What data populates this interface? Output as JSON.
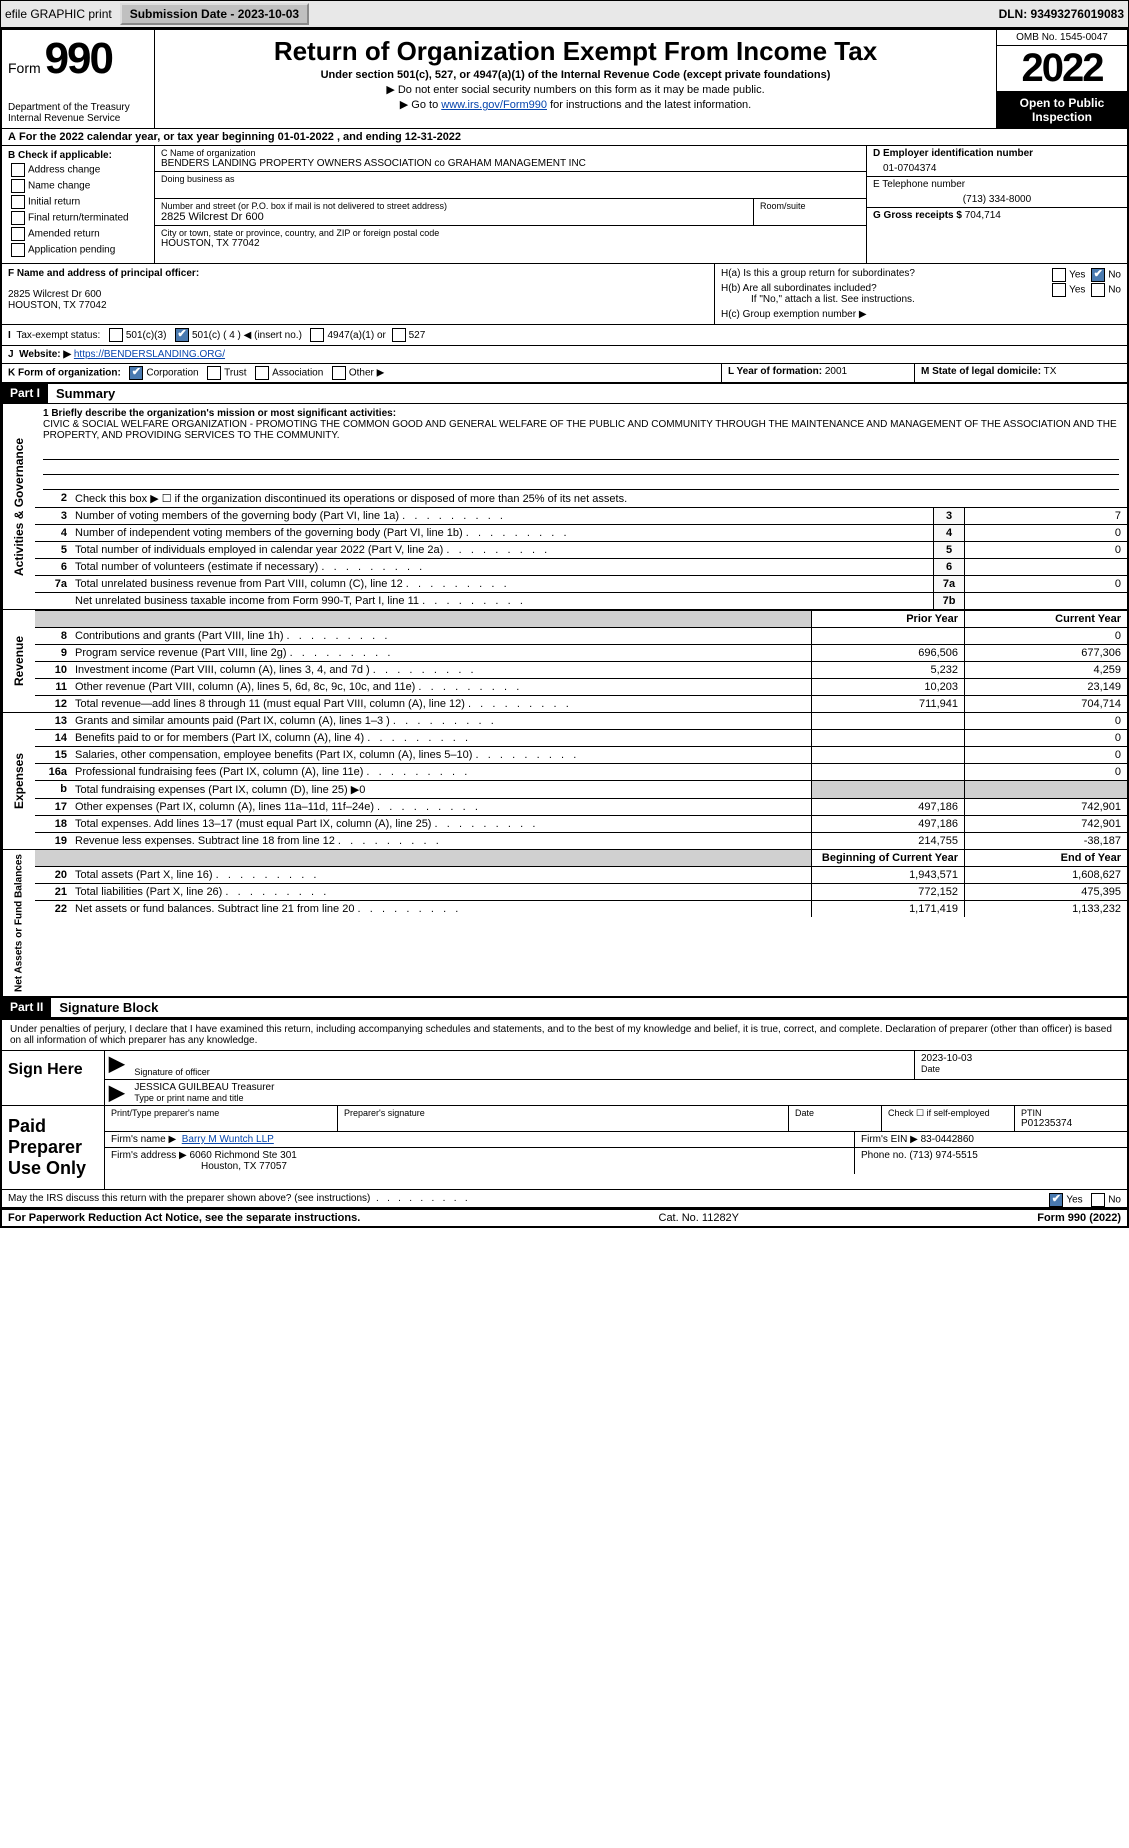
{
  "topbar": {
    "efile": "efile GRAPHIC print",
    "submission_label": "Submission Date - 2023-10-03",
    "dln": "DLN: 93493276019083"
  },
  "header": {
    "form_label": "Form",
    "form_number": "990",
    "dept": "Department of the Treasury",
    "irs": "Internal Revenue Service",
    "title": "Return of Organization Exempt From Income Tax",
    "sub1": "Under section 501(c), 527, or 4947(a)(1) of the Internal Revenue Code (except private foundations)",
    "sub2": "▶ Do not enter social security numbers on this form as it may be made public.",
    "sub3_pre": "▶ Go to ",
    "sub3_link": "www.irs.gov/Form990",
    "sub3_post": " for instructions and the latest information.",
    "omb": "OMB No. 1545-0047",
    "year": "2022",
    "open_public": "Open to Public Inspection"
  },
  "rowA": "For the 2022 calendar year, or tax year beginning 01-01-2022    , and ending 12-31-2022",
  "boxB": {
    "label": "B Check if applicable:",
    "opts": [
      "Address change",
      "Name change",
      "Initial return",
      "Final return/terminated",
      "Amended return",
      "Application pending"
    ]
  },
  "boxC": {
    "name_label": "C Name of organization",
    "name": "BENDERS LANDING PROPERTY OWNERS ASSOCIATION co GRAHAM MANAGEMENT INC",
    "dba_label": "Doing business as",
    "addr_label": "Number and street (or P.O. box if mail is not delivered to street address)",
    "addr": "2825 Wilcrest Dr 600",
    "room_label": "Room/suite",
    "city_label": "City or town, state or province, country, and ZIP or foreign postal code",
    "city": "HOUSTON, TX  77042"
  },
  "boxD": {
    "ein_label": "D Employer identification number",
    "ein": "01-0704374",
    "phone_label": "E Telephone number",
    "phone": "(713) 334-8000",
    "gross_label": "G Gross receipts $",
    "gross": "704,714"
  },
  "boxF": {
    "label": "F  Name and address of principal officer:",
    "addr1": "2825 Wilcrest Dr 600",
    "addr2": "HOUSTON, TX  77042"
  },
  "boxH": {
    "ha": "H(a)  Is this a group return for subordinates?",
    "hb": "H(b)  Are all subordinates included?",
    "hb_note": "If \"No,\" attach a list. See instructions.",
    "hc": "H(c)  Group exemption number ▶"
  },
  "rowI": {
    "label": "Tax-exempt status:",
    "o1": "501(c)(3)",
    "o2": "501(c) ( 4 ) ◀ (insert no.)",
    "o3": "4947(a)(1) or",
    "o4": "527"
  },
  "rowJ": {
    "label": "Website: ▶",
    "url": "https://BENDERSLANDING.ORG/"
  },
  "rowK": {
    "label": "K Form of organization:",
    "opts": [
      "Corporation",
      "Trust",
      "Association",
      "Other ▶"
    ],
    "year_label": "L Year of formation:",
    "year_val": "2001",
    "state_label": "M State of legal domicile:",
    "state_val": "TX"
  },
  "partI": {
    "title": "Part I",
    "name": "Summary",
    "q1_label": "1  Briefly describe the organization's mission or most significant activities:",
    "q1_text": "CIVIC & SOCIAL WELFARE ORGANIZATION - PROMOTING THE COMMON GOOD AND GENERAL WELFARE OF THE PUBLIC AND COMMUNITY THROUGH THE MAINTENANCE AND MANAGEMENT OF THE ASSOCIATION AND THE PROPERTY, AND PROVIDING SERVICES TO THE COMMUNITY.",
    "q2": "Check this box ▶ ☐  if the organization discontinued its operations or disposed of more than 25% of its net assets.",
    "lines_gov": [
      {
        "n": "3",
        "d": "Number of voting members of the governing body (Part VI, line 1a)",
        "box": "3",
        "v": "7"
      },
      {
        "n": "4",
        "d": "Number of independent voting members of the governing body (Part VI, line 1b)",
        "box": "4",
        "v": "0"
      },
      {
        "n": "5",
        "d": "Total number of individuals employed in calendar year 2022 (Part V, line 2a)",
        "box": "5",
        "v": "0"
      },
      {
        "n": "6",
        "d": "Total number of volunteers (estimate if necessary)",
        "box": "6",
        "v": ""
      },
      {
        "n": "7a",
        "d": "Total unrelated business revenue from Part VIII, column (C), line 12",
        "box": "7a",
        "v": "0"
      },
      {
        "n": "",
        "d": "Net unrelated business taxable income from Form 990-T, Part I, line 11",
        "box": "7b",
        "v": ""
      }
    ],
    "col_prior": "Prior Year",
    "col_current": "Current Year",
    "revenue": [
      {
        "n": "8",
        "d": "Contributions and grants (Part VIII, line 1h)",
        "p": "",
        "c": "0"
      },
      {
        "n": "9",
        "d": "Program service revenue (Part VIII, line 2g)",
        "p": "696,506",
        "c": "677,306"
      },
      {
        "n": "10",
        "d": "Investment income (Part VIII, column (A), lines 3, 4, and 7d )",
        "p": "5,232",
        "c": "4,259"
      },
      {
        "n": "11",
        "d": "Other revenue (Part VIII, column (A), lines 5, 6d, 8c, 9c, 10c, and 11e)",
        "p": "10,203",
        "c": "23,149"
      },
      {
        "n": "12",
        "d": "Total revenue—add lines 8 through 11 (must equal Part VIII, column (A), line 12)",
        "p": "711,941",
        "c": "704,714"
      }
    ],
    "expenses": [
      {
        "n": "13",
        "d": "Grants and similar amounts paid (Part IX, column (A), lines 1–3 )",
        "p": "",
        "c": "0"
      },
      {
        "n": "14",
        "d": "Benefits paid to or for members (Part IX, column (A), line 4)",
        "p": "",
        "c": "0"
      },
      {
        "n": "15",
        "d": "Salaries, other compensation, employee benefits (Part IX, column (A), lines 5–10)",
        "p": "",
        "c": "0"
      },
      {
        "n": "16a",
        "d": "Professional fundraising fees (Part IX, column (A), line 11e)",
        "p": "",
        "c": "0"
      },
      {
        "n": "b",
        "d": "Total fundraising expenses (Part IX, column (D), line 25) ▶0",
        "p": "shaded",
        "c": "shaded"
      },
      {
        "n": "17",
        "d": "Other expenses (Part IX, column (A), lines 11a–11d, 11f–24e)",
        "p": "497,186",
        "c": "742,901"
      },
      {
        "n": "18",
        "d": "Total expenses. Add lines 13–17 (must equal Part IX, column (A), line 25)",
        "p": "497,186",
        "c": "742,901"
      },
      {
        "n": "19",
        "d": "Revenue less expenses. Subtract line 18 from line 12",
        "p": "214,755",
        "c": "-38,187"
      }
    ],
    "col_begin": "Beginning of Current Year",
    "col_end": "End of Year",
    "netassets": [
      {
        "n": "20",
        "d": "Total assets (Part X, line 16)",
        "p": "1,943,571",
        "c": "1,608,627"
      },
      {
        "n": "21",
        "d": "Total liabilities (Part X, line 26)",
        "p": "772,152",
        "c": "475,395"
      },
      {
        "n": "22",
        "d": "Net assets or fund balances. Subtract line 21 from line 20",
        "p": "1,171,419",
        "c": "1,133,232"
      }
    ],
    "tabs": {
      "gov": "Activities & Governance",
      "rev": "Revenue",
      "exp": "Expenses",
      "net": "Net Assets or Fund Balances"
    }
  },
  "partII": {
    "title": "Part II",
    "name": "Signature Block",
    "penalties": "Under penalties of perjury, I declare that I have examined this return, including accompanying schedules and statements, and to the best of my knowledge and belief, it is true, correct, and complete. Declaration of preparer (other than officer) is based on all information of which preparer has any knowledge.",
    "sign_here": "Sign Here",
    "sig_officer": "Signature of officer",
    "sig_date": "Date",
    "sig_date_val": "2023-10-03",
    "officer_name": "JESSICA GUILBEAU  Treasurer",
    "type_name": "Type or print name and title",
    "paid": "Paid Preparer Use Only",
    "prep_name_label": "Print/Type preparer's name",
    "prep_sig_label": "Preparer's signature",
    "date_label": "Date",
    "check_self": "Check ☐ if self-employed",
    "ptin_label": "PTIN",
    "ptin": "P01235374",
    "firm_name_label": "Firm's name    ▶",
    "firm_name": "Barry M Wuntch LLP",
    "firm_ein_label": "Firm's EIN ▶",
    "firm_ein": "83-0442860",
    "firm_addr_label": "Firm's address ▶",
    "firm_addr": "6060 Richmond Ste 301",
    "firm_city": "Houston, TX  77057",
    "firm_phone_label": "Phone no.",
    "firm_phone": "(713) 974-5515",
    "may_irs": "May the IRS discuss this return with the preparer shown above? (see instructions)"
  },
  "footer": {
    "left": "For Paperwork Reduction Act Notice, see the separate instructions.",
    "mid": "Cat. No. 11282Y",
    "right": "Form 990 (2022)"
  },
  "yn": {
    "yes": "Yes",
    "no": "No"
  }
}
